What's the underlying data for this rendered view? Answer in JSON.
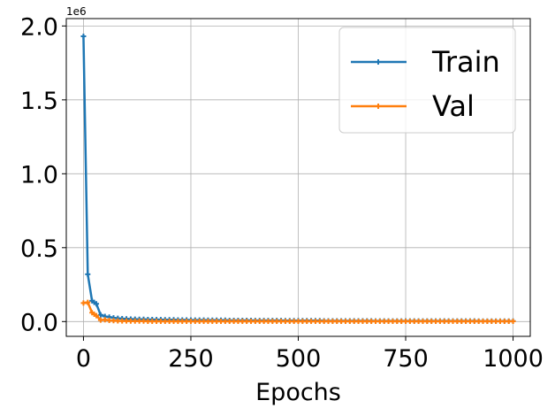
{
  "chart_data": {
    "type": "line",
    "title": "",
    "xlabel": "Epochs",
    "ylabel": "",
    "y_offset_label": "1e6",
    "xlim": [
      -40,
      1040
    ],
    "ylim": [
      -0.1,
      2.05
    ],
    "xticks": [
      0,
      250,
      500,
      750,
      1000
    ],
    "xtick_labels": [
      "0",
      "250",
      "500",
      "750",
      "1000"
    ],
    "yticks": [
      0.0,
      0.5,
      1.0,
      1.5,
      2.0
    ],
    "ytick_labels": [
      "0.0",
      "0.5",
      "1.0",
      "1.5",
      "2.0"
    ],
    "grid": true,
    "legend_position": "top-right",
    "series": [
      {
        "name": "Train",
        "color": "#1f77b4",
        "x": [
          0,
          10,
          20,
          25,
          30,
          40,
          50,
          60,
          70,
          80,
          90,
          100,
          110,
          120,
          130,
          140,
          150,
          160,
          170,
          180,
          190,
          200,
          210,
          220,
          230,
          240,
          250,
          260,
          270,
          280,
          290,
          300,
          310,
          320,
          330,
          340,
          350,
          360,
          370,
          380,
          390,
          400,
          410,
          420,
          430,
          440,
          450,
          460,
          470,
          480,
          490,
          500,
          510,
          520,
          530,
          540,
          550,
          560,
          570,
          580,
          590,
          600,
          610,
          620,
          630,
          640,
          650,
          660,
          670,
          680,
          690,
          700,
          710,
          720,
          730,
          740,
          750,
          760,
          770,
          780,
          790,
          800,
          810,
          820,
          830,
          840,
          850,
          860,
          870,
          880,
          890,
          900,
          910,
          920,
          930,
          940,
          950,
          960,
          970,
          980,
          990,
          1000
        ],
        "y": [
          1.93,
          0.32,
          0.14,
          0.13,
          0.12,
          0.045,
          0.035,
          0.03,
          0.025,
          0.022,
          0.02,
          0.018,
          0.017,
          0.016,
          0.015,
          0.015,
          0.014,
          0.014,
          0.013,
          0.013,
          0.012,
          0.012,
          0.012,
          0.011,
          0.011,
          0.011,
          0.01,
          0.01,
          0.01,
          0.01,
          0.009,
          0.009,
          0.009,
          0.009,
          0.009,
          0.008,
          0.008,
          0.008,
          0.008,
          0.008,
          0.008,
          0.007,
          0.007,
          0.007,
          0.007,
          0.007,
          0.007,
          0.007,
          0.006,
          0.006,
          0.006,
          0.006,
          0.006,
          0.006,
          0.006,
          0.006,
          0.006,
          0.005,
          0.005,
          0.005,
          0.005,
          0.005,
          0.005,
          0.005,
          0.005,
          0.005,
          0.005,
          0.005,
          0.005,
          0.004,
          0.004,
          0.004,
          0.004,
          0.004,
          0.004,
          0.004,
          0.004,
          0.004,
          0.004,
          0.004,
          0.004,
          0.004,
          0.004,
          0.004,
          0.004,
          0.004,
          0.004,
          0.004,
          0.004,
          0.004,
          0.004,
          0.004,
          0.004,
          0.003,
          0.003,
          0.003,
          0.003,
          0.003,
          0.003,
          0.003,
          0.003,
          0.003
        ]
      },
      {
        "name": "Val",
        "color": "#ff7f0e",
        "x": [
          0,
          10,
          20,
          25,
          30,
          40,
          50,
          60,
          70,
          80,
          90,
          100,
          110,
          120,
          130,
          140,
          150,
          160,
          170,
          180,
          190,
          200,
          210,
          220,
          230,
          240,
          250,
          260,
          270,
          280,
          290,
          300,
          310,
          320,
          330,
          340,
          350,
          360,
          370,
          380,
          390,
          400,
          410,
          420,
          430,
          440,
          450,
          460,
          470,
          480,
          490,
          500,
          510,
          520,
          530,
          540,
          550,
          560,
          570,
          580,
          590,
          600,
          610,
          620,
          630,
          640,
          650,
          660,
          670,
          680,
          690,
          700,
          710,
          720,
          730,
          740,
          750,
          760,
          770,
          780,
          790,
          800,
          810,
          820,
          830,
          840,
          850,
          860,
          870,
          880,
          890,
          900,
          910,
          920,
          930,
          940,
          950,
          960,
          970,
          980,
          990,
          1000
        ],
        "y": [
          0.125,
          0.13,
          0.06,
          0.05,
          0.04,
          0.01,
          0.012,
          0.008,
          0.006,
          0.005,
          0.004,
          0.004,
          0.003,
          0.003,
          0.003,
          0.003,
          0.002,
          0.002,
          0.002,
          0.002,
          0.002,
          0.002,
          0.002,
          0.002,
          0.002,
          0.002,
          0.002,
          0.002,
          0.002,
          0.002,
          0.002,
          0.002,
          0.002,
          0.002,
          0.002,
          0.002,
          0.002,
          0.002,
          0.002,
          0.002,
          0.002,
          0.002,
          0.002,
          0.002,
          0.002,
          0.002,
          0.002,
          0.002,
          0.002,
          0.002,
          0.002,
          0.002,
          0.002,
          0.002,
          0.002,
          0.002,
          0.002,
          0.002,
          0.002,
          0.002,
          0.002,
          0.002,
          0.002,
          0.002,
          0.002,
          0.002,
          0.002,
          0.002,
          0.002,
          0.002,
          0.002,
          0.002,
          0.002,
          0.002,
          0.002,
          0.002,
          0.002,
          0.002,
          0.002,
          0.002,
          0.002,
          0.002,
          0.002,
          0.002,
          0.002,
          0.002,
          0.002,
          0.002,
          0.002,
          0.002,
          0.002,
          0.002,
          0.002,
          0.002,
          0.002,
          0.002,
          0.002,
          0.002,
          0.002,
          0.002,
          0.002,
          0.002
        ]
      }
    ]
  }
}
